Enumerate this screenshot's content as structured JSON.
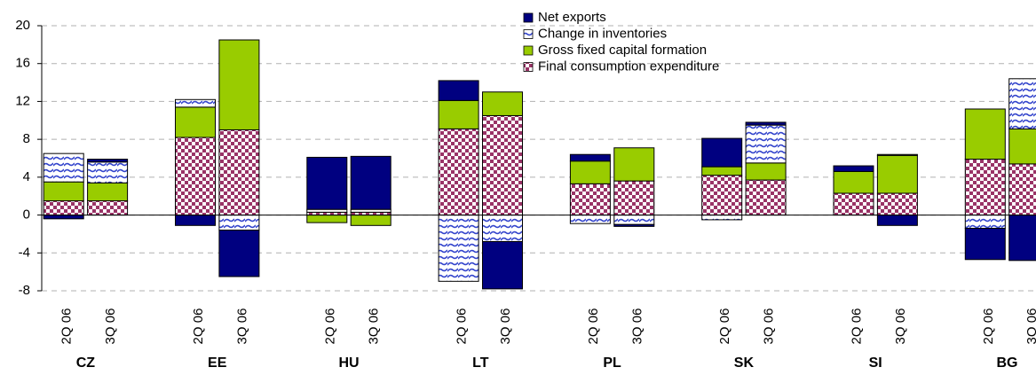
{
  "chart_data": {
    "type": "stacked_bar",
    "categories": [
      "2Q 06",
      "3Q 06",
      "2Q 06",
      "3Q 06",
      "2Q 06",
      "3Q 06",
      "2Q 06",
      "3Q 06",
      "2Q 06",
      "3Q 06",
      "2Q 06",
      "3Q 06",
      "2Q 06",
      "3Q 06",
      "2Q 06",
      "3Q 06"
    ],
    "groups": [
      "CZ",
      "EE",
      "HU",
      "LT",
      "PL",
      "SK",
      "SI",
      "BG"
    ],
    "series": [
      {
        "name": "Net exports",
        "color": "#000080",
        "values": [
          -0.4,
          0.3,
          -1.1,
          -4.9,
          5.5,
          5.6,
          2.1,
          -5.0,
          0.7,
          -0.2,
          3.0,
          0.3,
          0.6,
          -1.1,
          -3.3,
          -4.8
        ]
      },
      {
        "name": "Change in inventories",
        "color": "#3344cc",
        "values": [
          3.0,
          2.2,
          0.8,
          -1.6,
          0.3,
          0.3,
          -7.0,
          -2.8,
          -0.9,
          -1.0,
          -0.5,
          4.0,
          null,
          0.1,
          -1.4,
          5.3
        ]
      },
      {
        "name": "Gross fixed capital formation",
        "color": "#99cc00",
        "values": [
          2.0,
          1.9,
          3.2,
          9.5,
          -0.8,
          -1.1,
          3.0,
          2.5,
          2.4,
          3.5,
          0.9,
          1.8,
          2.3,
          4.0,
          5.3,
          3.7
        ]
      },
      {
        "name": "Final consumption expenditure",
        "color": "#993366",
        "values": [
          1.5,
          1.5,
          8.2,
          9.0,
          0.3,
          0.3,
          9.1,
          10.5,
          3.3,
          3.6,
          4.2,
          3.7,
          2.3,
          2.3,
          5.9,
          5.4
        ]
      }
    ],
    "ylim": [
      -8,
      20
    ],
    "yticks": [
      -8,
      -4,
      0,
      4,
      8,
      12,
      16,
      20
    ],
    "grid": true
  }
}
